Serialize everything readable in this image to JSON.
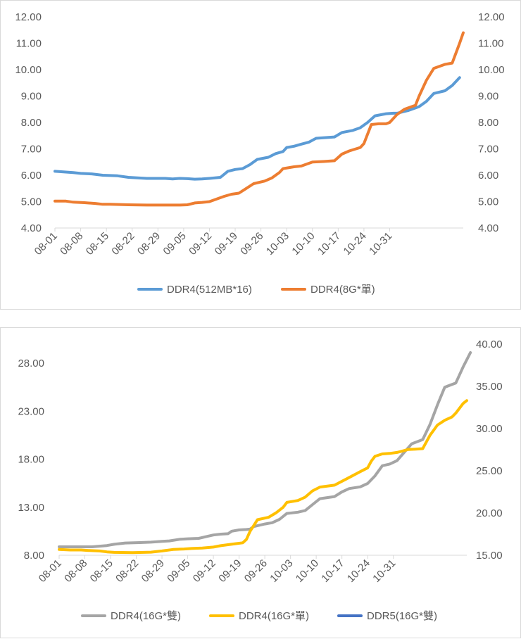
{
  "chart_data": [
    {
      "type": "line",
      "title": "",
      "xlabel": "",
      "ylabel": "",
      "categories": [
        "08-01",
        "08-08",
        "08-15",
        "08-22",
        "08-29",
        "09-05",
        "09-12",
        "09-19",
        "09-26",
        "10-03",
        "10-10",
        "10-17",
        "10-24",
        "10-31"
      ],
      "ylim": [
        4,
        12
      ],
      "yticks": [
        "4.00",
        "5.00",
        "6.00",
        "7.00",
        "8.00",
        "9.00",
        "10.00",
        "11.00",
        "12.00"
      ],
      "ylim_right": [
        4,
        12
      ],
      "yticks_right": [
        "4.00",
        "5.00",
        "6.00",
        "7.00",
        "8.00",
        "9.00",
        "10.00",
        "11.00",
        "12.00"
      ],
      "series": [
        {
          "name": "DDR4(512MB*16)",
          "color": "#5b9bd5",
          "axis": "left",
          "points": [
            [
              0,
              6.15
            ],
            [
              3,
              6.12
            ],
            [
              5,
              6.1
            ],
            [
              7,
              6.07
            ],
            [
              10,
              6.05
            ],
            [
              13,
              6.0
            ],
            [
              17,
              5.98
            ],
            [
              20,
              5.92
            ],
            [
              25,
              5.88
            ],
            [
              30,
              5.88
            ],
            [
              32,
              5.86
            ],
            [
              34,
              5.88
            ],
            [
              36,
              5.87
            ],
            [
              38,
              5.85
            ],
            [
              40,
              5.86
            ],
            [
              42,
              5.88
            ],
            [
              45,
              5.92
            ],
            [
              47,
              6.15
            ],
            [
              49,
              6.22
            ],
            [
              51,
              6.25
            ],
            [
              53,
              6.4
            ],
            [
              55,
              6.6
            ],
            [
              58,
              6.68
            ],
            [
              60,
              6.82
            ],
            [
              62,
              6.9
            ],
            [
              63,
              7.05
            ],
            [
              65,
              7.1
            ],
            [
              67,
              7.18
            ],
            [
              69,
              7.25
            ],
            [
              71,
              7.4
            ],
            [
              76,
              7.45
            ],
            [
              78,
              7.62
            ],
            [
              81,
              7.7
            ],
            [
              83,
              7.8
            ],
            [
              85,
              8.0
            ],
            [
              87,
              8.25
            ],
            [
              90,
              8.33
            ],
            [
              92,
              8.35
            ],
            [
              93,
              8.35
            ],
            [
              96,
              8.45
            ],
            [
              99,
              8.6
            ],
            [
              101,
              8.8
            ],
            [
              103,
              9.1
            ],
            [
              106,
              9.2
            ],
            [
              108,
              9.4
            ],
            [
              110,
              9.7
            ]
          ]
        },
        {
          "name": "DDR4(8G*單)",
          "color": "#ed7d31",
          "axis": "left",
          "points": [
            [
              0,
              5.02
            ],
            [
              3,
              5.02
            ],
            [
              5,
              4.98
            ],
            [
              8,
              4.96
            ],
            [
              11,
              4.93
            ],
            [
              13,
              4.9
            ],
            [
              15,
              4.9
            ],
            [
              20,
              4.88
            ],
            [
              25,
              4.87
            ],
            [
              30,
              4.87
            ],
            [
              34,
              4.87
            ],
            [
              36,
              4.88
            ],
            [
              38,
              4.95
            ],
            [
              40,
              4.97
            ],
            [
              42,
              5.0
            ],
            [
              44,
              5.1
            ],
            [
              46,
              5.2
            ],
            [
              48,
              5.28
            ],
            [
              50,
              5.32
            ],
            [
              52,
              5.5
            ],
            [
              54,
              5.68
            ],
            [
              57,
              5.78
            ],
            [
              59,
              5.9
            ],
            [
              61,
              6.1
            ],
            [
              62,
              6.25
            ],
            [
              65,
              6.32
            ],
            [
              67,
              6.35
            ],
            [
              70,
              6.5
            ],
            [
              73,
              6.52
            ],
            [
              76,
              6.55
            ],
            [
              78,
              6.8
            ],
            [
              80,
              6.92
            ],
            [
              83,
              7.05
            ],
            [
              84,
              7.2
            ],
            [
              86,
              7.92
            ],
            [
              88,
              7.95
            ],
            [
              90,
              7.95
            ],
            [
              91,
              8.0
            ],
            [
              93,
              8.3
            ],
            [
              95,
              8.5
            ],
            [
              97,
              8.6
            ],
            [
              98,
              8.65
            ],
            [
              99,
              9.0
            ],
            [
              101,
              9.6
            ],
            [
              103,
              10.05
            ],
            [
              106,
              10.2
            ],
            [
              108,
              10.25
            ],
            [
              110,
              11.0
            ],
            [
              111,
              11.4
            ]
          ]
        }
      ],
      "legend": {
        "position": "bottom",
        "entries": [
          "DDR4(512MB*16)",
          "DDR4(8G*單)"
        ]
      }
    },
    {
      "type": "line",
      "title": "",
      "xlabel": "",
      "ylabel": "",
      "categories": [
        "08-01",
        "08-08",
        "08-15",
        "08-22",
        "08-29",
        "09-05",
        "09-12",
        "09-19",
        "09-26",
        "10-03",
        "10-10",
        "10-17",
        "10-24",
        "10-31"
      ],
      "ylim": [
        8,
        28
      ],
      "yticks": [
        "8.00",
        "13.00",
        "18.00",
        "23.00",
        "28.00"
      ],
      "ylim_right": [
        15,
        40
      ],
      "yticks_right": [
        "15.00",
        "20.00",
        "25.00",
        "30.00",
        "35.00",
        "40.00"
      ],
      "series": [
        {
          "name": "DDR4(16G*雙)",
          "color": "#a5a5a5",
          "axis": "right",
          "points": [
            [
              0,
              16.0
            ],
            [
              5,
              16.0
            ],
            [
              9,
              16.0
            ],
            [
              13,
              16.15
            ],
            [
              15,
              16.3
            ],
            [
              18,
              16.45
            ],
            [
              22,
              16.5
            ],
            [
              25,
              16.55
            ],
            [
              28,
              16.65
            ],
            [
              30,
              16.7
            ],
            [
              33,
              16.9
            ],
            [
              35,
              16.95
            ],
            [
              38,
              17.0
            ],
            [
              40,
              17.2
            ],
            [
              42,
              17.4
            ],
            [
              44,
              17.5
            ],
            [
              46,
              17.55
            ],
            [
              47,
              17.85
            ],
            [
              49,
              18.0
            ],
            [
              51,
              18.05
            ],
            [
              52,
              18.1
            ],
            [
              53,
              18.4
            ],
            [
              56,
              18.7
            ],
            [
              58,
              18.85
            ],
            [
              60,
              19.25
            ],
            [
              62,
              19.95
            ],
            [
              65,
              20.1
            ],
            [
              67,
              20.3
            ],
            [
              69,
              21.0
            ],
            [
              71,
              21.7
            ],
            [
              75,
              21.95
            ],
            [
              77,
              22.5
            ],
            [
              79,
              22.9
            ],
            [
              82,
              23.1
            ],
            [
              84,
              23.5
            ],
            [
              86,
              24.4
            ],
            [
              88,
              25.6
            ],
            [
              90,
              25.8
            ],
            [
              92,
              26.2
            ],
            [
              94,
              27.2
            ],
            [
              96,
              28.2
            ],
            [
              99,
              28.7
            ],
            [
              101,
              30.5
            ],
            [
              103,
              32.8
            ],
            [
              105,
              34.9
            ],
            [
              108,
              35.4
            ],
            [
              110,
              37.3
            ],
            [
              112,
              39.0
            ]
          ]
        },
        {
          "name": "DDR4(16G*單)",
          "color": "#ffc000",
          "axis": "left",
          "points": [
            [
              0,
              8.6
            ],
            [
              3,
              8.55
            ],
            [
              6,
              8.55
            ],
            [
              8,
              8.5
            ],
            [
              11,
              8.45
            ],
            [
              13,
              8.35
            ],
            [
              15,
              8.3
            ],
            [
              20,
              8.28
            ],
            [
              25,
              8.32
            ],
            [
              28,
              8.45
            ],
            [
              31,
              8.6
            ],
            [
              34,
              8.65
            ],
            [
              36,
              8.7
            ],
            [
              39,
              8.75
            ],
            [
              42,
              8.85
            ],
            [
              44,
              9.0
            ],
            [
              46,
              9.1
            ],
            [
              48,
              9.2
            ],
            [
              50,
              9.3
            ],
            [
              51,
              9.65
            ],
            [
              52,
              10.5
            ],
            [
              54,
              11.7
            ],
            [
              57,
              11.95
            ],
            [
              59,
              12.4
            ],
            [
              61,
              13.0
            ],
            [
              62,
              13.5
            ],
            [
              65,
              13.7
            ],
            [
              67,
              14.05
            ],
            [
              69,
              14.7
            ],
            [
              71,
              15.1
            ],
            [
              75,
              15.3
            ],
            [
              76,
              15.5
            ],
            [
              78,
              15.9
            ],
            [
              80,
              16.3
            ],
            [
              82,
              16.7
            ],
            [
              84,
              17.1
            ],
            [
              85,
              17.8
            ],
            [
              86,
              18.3
            ],
            [
              88,
              18.55
            ],
            [
              90,
              18.6
            ],
            [
              92,
              18.7
            ],
            [
              95,
              19.0
            ],
            [
              97,
              19.05
            ],
            [
              99,
              19.1
            ],
            [
              101,
              20.5
            ],
            [
              103,
              21.55
            ],
            [
              105,
              22.05
            ],
            [
              107,
              22.4
            ],
            [
              108,
              22.8
            ],
            [
              110,
              23.8
            ],
            [
              111,
              24.1
            ]
          ]
        },
        {
          "name": "DDR5(16G*雙)",
          "color": "#4472c4",
          "axis": "right",
          "points": []
        }
      ],
      "legend": {
        "position": "bottom",
        "entries": [
          "DDR4(16G*雙)",
          "DDR4(16G*單)",
          "DDR5(16G*雙)"
        ]
      }
    }
  ]
}
